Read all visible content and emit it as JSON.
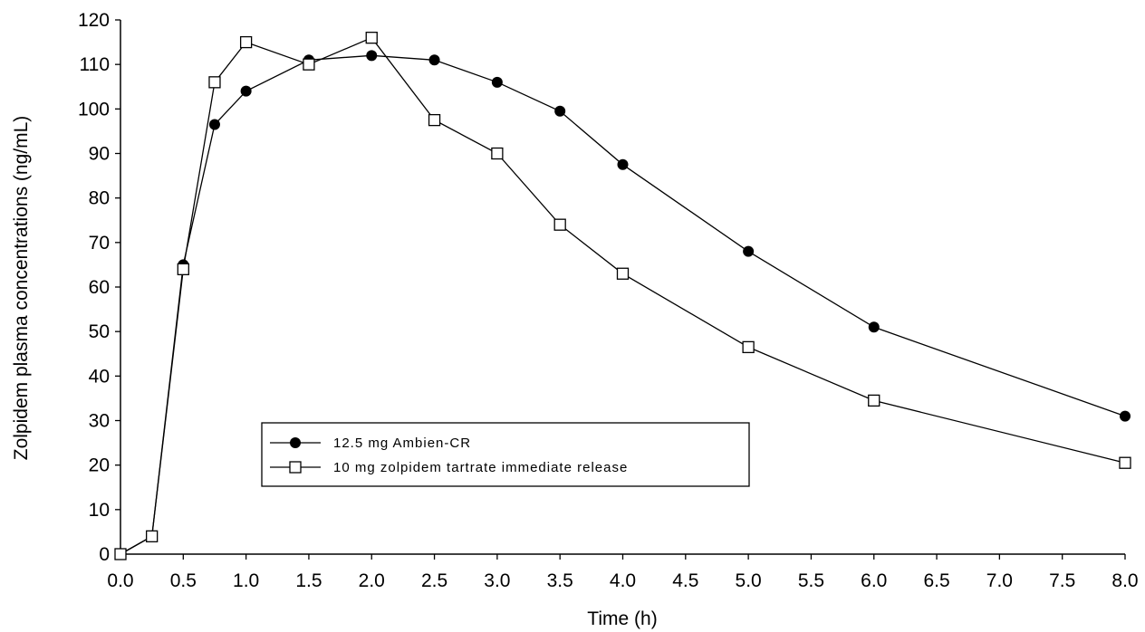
{
  "chart_data": {
    "type": "line",
    "title": "",
    "xlabel": "Time (h)",
    "ylabel": "Zolpidem plasma concentrations (ng/mL)",
    "xlim": [
      0,
      8
    ],
    "ylim": [
      0,
      120
    ],
    "x_ticks": [
      "0.0",
      "0.5",
      "1.0",
      "1.5",
      "2.0",
      "2.5",
      "3.0",
      "3.5",
      "4.0",
      "4.5",
      "5.0",
      "5.5",
      "6.0",
      "6.5",
      "7.0",
      "7.5",
      "8.0"
    ],
    "y_ticks": [
      "0",
      "10",
      "20",
      "30",
      "40",
      "50",
      "60",
      "70",
      "80",
      "90",
      "100",
      "110",
      "120"
    ],
    "grid": false,
    "legend_position": "lower-left",
    "series": [
      {
        "name": "12.5 mg Ambien-CR",
        "marker": "filled-circle",
        "color": "#000000",
        "x": [
          0,
          0.25,
          0.5,
          0.75,
          1.0,
          1.5,
          2.0,
          2.5,
          3.0,
          3.5,
          4.0,
          5.0,
          6.0,
          8.0
        ],
        "y": [
          0,
          4,
          65,
          96.5,
          104,
          111,
          112,
          111,
          106,
          99.5,
          87.5,
          68,
          51,
          31
        ]
      },
      {
        "name": "10 mg zolpidem tartrate immediate release",
        "marker": "open-square",
        "color": "#000000",
        "x": [
          0,
          0.25,
          0.5,
          0.75,
          1.0,
          1.5,
          2.0,
          2.5,
          3.0,
          3.5,
          4.0,
          5.0,
          6.0,
          8.0
        ],
        "y": [
          0,
          4,
          64,
          106,
          115,
          110,
          116,
          97.5,
          90,
          74,
          63,
          46.5,
          34.5,
          20.5
        ]
      }
    ]
  }
}
